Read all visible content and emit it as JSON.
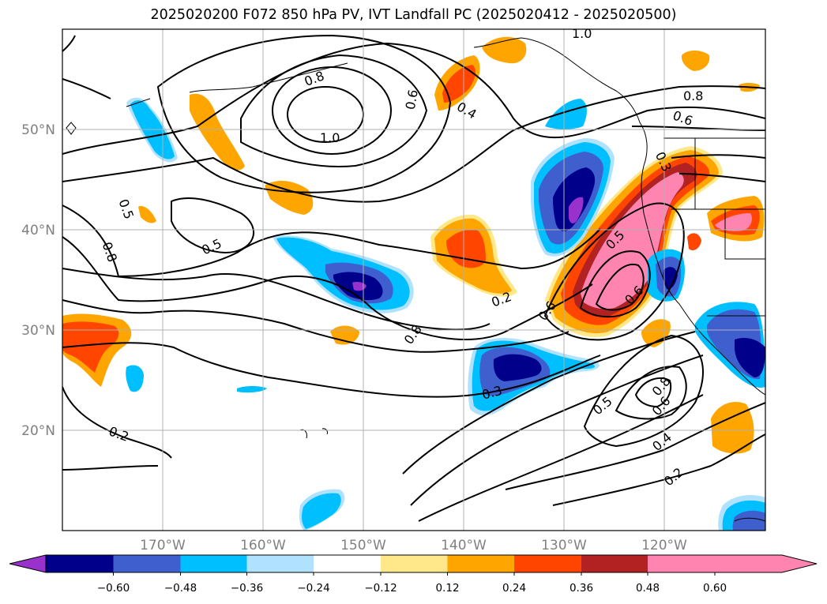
{
  "title": "2025020200 F072 850 hPa PV, IVT Landfall PC (2025020412 - 2025020500)",
  "map": {
    "lon_range": [
      -180,
      -110
    ],
    "lat_range": [
      10,
      60
    ],
    "lat_gridlines": [
      20,
      30,
      40,
      50
    ],
    "lon_gridlines": [
      -170,
      -160,
      -150,
      -140,
      -130,
      -120
    ],
    "lat_labels": [
      "20°N",
      "30°N",
      "40°N",
      "50°N"
    ],
    "lon_labels": [
      "170°W",
      "160°W",
      "150°W",
      "140°W",
      "130°W",
      "120°W"
    ]
  },
  "contour_labels": [
    "0.8",
    "1.0",
    "0.6",
    "0.4",
    "0.5",
    "0.2",
    "0.3",
    "0.5",
    "0.6",
    "0.8",
    "0.4",
    "0.2",
    "0.5",
    "0.6",
    "0.8",
    "1.0",
    "0.8",
    "0.6",
    "0.3",
    "0.2",
    "0.5",
    "0.6",
    "0.8"
  ],
  "colorbar": {
    "tick_labels": [
      "−0.60",
      "−0.48",
      "−0.36",
      "−0.24",
      "−0.12",
      "0.12",
      "0.24",
      "0.36",
      "0.48",
      "0.60"
    ],
    "colors": [
      "#9932cc",
      "#00008b",
      "#3f5fcf",
      "#00bfff",
      "#b0e2ff",
      "#ffffff",
      "#ffe88a",
      "#ffa500",
      "#ff4500",
      "#b22222",
      "#ff85b0"
    ]
  }
}
